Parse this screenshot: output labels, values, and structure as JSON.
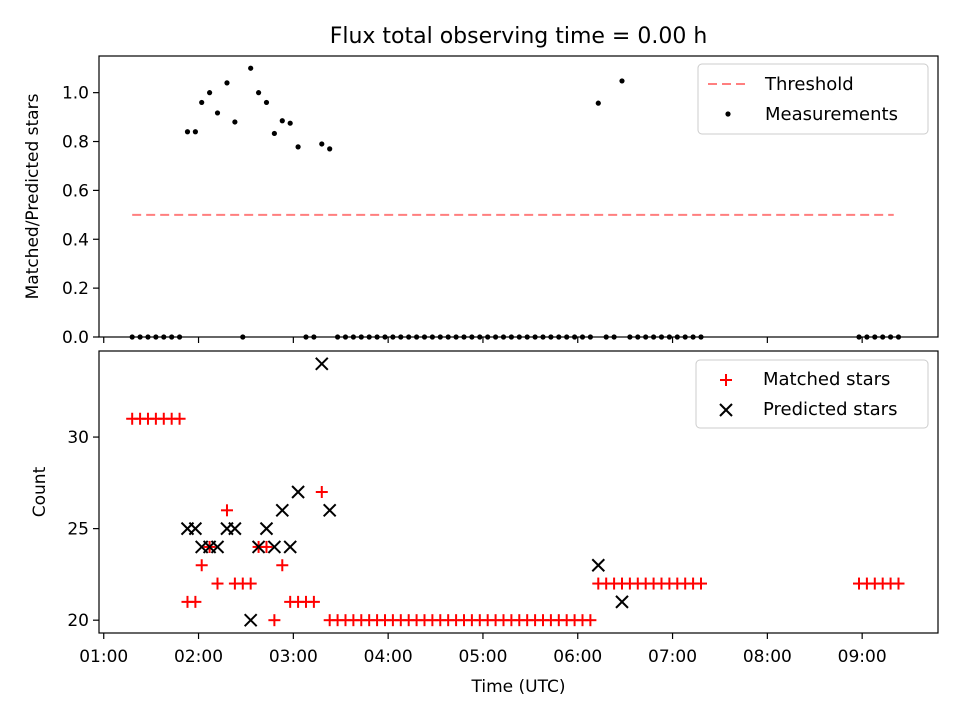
{
  "chart_data": {
    "type": "scatter",
    "title": "Flux total observing time = 0.00 h",
    "xlabel": "Time (UTC)",
    "xlim": [
      "00:57",
      "09:48"
    ],
    "x_ticks": [
      "01:00",
      "02:00",
      "03:00",
      "04:00",
      "05:00",
      "06:00",
      "07:00",
      "08:00",
      "09:00"
    ],
    "panels": [
      {
        "name": "ratio",
        "ylabel": "Matched/Predicted stars",
        "ylim": [
          0,
          1.15
        ],
        "y_ticks": [
          "0.0",
          "0.2",
          "0.4",
          "0.6",
          "0.8",
          "1.0"
        ],
        "legend_position": "upper-right",
        "series": [
          {
            "name": "Threshold",
            "kind": "line",
            "style": "dashed",
            "color": "#ff7f7f",
            "points": [
              {
                "x": "01:18",
                "y": 0.5
              },
              {
                "x": "09:20",
                "y": 0.5
              }
            ]
          },
          {
            "name": "Measurements",
            "kind": "scatter",
            "marker": "dot",
            "color": "#000000",
            "points": [
              {
                "x": "01:18",
                "y": 0
              },
              {
                "x": "01:23",
                "y": 0
              },
              {
                "x": "01:28",
                "y": 0
              },
              {
                "x": "01:33",
                "y": 0
              },
              {
                "x": "01:38",
                "y": 0
              },
              {
                "x": "01:43",
                "y": 0
              },
              {
                "x": "01:48",
                "y": 0
              },
              {
                "x": "01:53",
                "y": 0.84
              },
              {
                "x": "01:58",
                "y": 0.84
              },
              {
                "x": "02:02",
                "y": 0.96
              },
              {
                "x": "02:07",
                "y": 1.0
              },
              {
                "x": "02:12",
                "y": 0.917
              },
              {
                "x": "02:18",
                "y": 1.04
              },
              {
                "x": "02:23",
                "y": 0.88
              },
              {
                "x": "02:28",
                "y": 0
              },
              {
                "x": "02:33",
                "y": 1.1
              },
              {
                "x": "02:38",
                "y": 1.0
              },
              {
                "x": "02:43",
                "y": 0.96
              },
              {
                "x": "02:48",
                "y": 0.833
              },
              {
                "x": "02:53",
                "y": 0.885
              },
              {
                "x": "02:58",
                "y": 0.875
              },
              {
                "x": "03:03",
                "y": 0.778
              },
              {
                "x": "03:08",
                "y": 0
              },
              {
                "x": "03:13",
                "y": 0
              },
              {
                "x": "03:18",
                "y": 0.79
              },
              {
                "x": "03:23",
                "y": 0.77
              },
              {
                "x": "03:28",
                "y": 0
              },
              {
                "x": "03:33",
                "y": 0
              },
              {
                "x": "03:38",
                "y": 0
              },
              {
                "x": "03:43",
                "y": 0
              },
              {
                "x": "03:48",
                "y": 0
              },
              {
                "x": "03:53",
                "y": 0
              },
              {
                "x": "03:58",
                "y": 0
              },
              {
                "x": "04:03",
                "y": 0
              },
              {
                "x": "04:08",
                "y": 0
              },
              {
                "x": "04:13",
                "y": 0
              },
              {
                "x": "04:18",
                "y": 0
              },
              {
                "x": "04:23",
                "y": 0
              },
              {
                "x": "04:28",
                "y": 0
              },
              {
                "x": "04:33",
                "y": 0
              },
              {
                "x": "04:38",
                "y": 0
              },
              {
                "x": "04:43",
                "y": 0
              },
              {
                "x": "04:48",
                "y": 0
              },
              {
                "x": "04:53",
                "y": 0
              },
              {
                "x": "04:58",
                "y": 0
              },
              {
                "x": "05:03",
                "y": 0
              },
              {
                "x": "05:08",
                "y": 0
              },
              {
                "x": "05:13",
                "y": 0
              },
              {
                "x": "05:18",
                "y": 0
              },
              {
                "x": "05:23",
                "y": 0
              },
              {
                "x": "05:28",
                "y": 0
              },
              {
                "x": "05:33",
                "y": 0
              },
              {
                "x": "05:38",
                "y": 0
              },
              {
                "x": "05:43",
                "y": 0
              },
              {
                "x": "05:48",
                "y": 0
              },
              {
                "x": "05:53",
                "y": 0
              },
              {
                "x": "05:58",
                "y": 0
              },
              {
                "x": "06:03",
                "y": 0
              },
              {
                "x": "06:08",
                "y": 0
              },
              {
                "x": "06:13",
                "y": 0.957
              },
              {
                "x": "06:18",
                "y": 0
              },
              {
                "x": "06:23",
                "y": 0
              },
              {
                "x": "06:28",
                "y": 1.048
              },
              {
                "x": "06:33",
                "y": 0
              },
              {
                "x": "06:38",
                "y": 0
              },
              {
                "x": "06:43",
                "y": 0
              },
              {
                "x": "06:48",
                "y": 0
              },
              {
                "x": "06:53",
                "y": 0
              },
              {
                "x": "06:58",
                "y": 0
              },
              {
                "x": "07:03",
                "y": 0
              },
              {
                "x": "07:08",
                "y": 0
              },
              {
                "x": "07:13",
                "y": 0
              },
              {
                "x": "07:18",
                "y": 0
              },
              {
                "x": "08:58",
                "y": 0
              },
              {
                "x": "09:03",
                "y": 0
              },
              {
                "x": "09:08",
                "y": 0
              },
              {
                "x": "09:13",
                "y": 0
              },
              {
                "x": "09:18",
                "y": 0
              },
              {
                "x": "09:23",
                "y": 0
              }
            ]
          }
        ]
      },
      {
        "name": "count",
        "ylabel": "Count",
        "ylim": [
          19.3,
          34.7
        ],
        "y_ticks": [
          "20",
          "25",
          "30"
        ],
        "legend_position": "upper-right",
        "series": [
          {
            "name": "Matched stars",
            "kind": "scatter",
            "marker": "plus",
            "color": "#ff0000",
            "points": [
              {
                "x": "01:18",
                "y": 31
              },
              {
                "x": "01:23",
                "y": 31
              },
              {
                "x": "01:28",
                "y": 31
              },
              {
                "x": "01:33",
                "y": 31
              },
              {
                "x": "01:38",
                "y": 31
              },
              {
                "x": "01:43",
                "y": 31
              },
              {
                "x": "01:48",
                "y": 31
              },
              {
                "x": "01:53",
                "y": 21
              },
              {
                "x": "01:58",
                "y": 21
              },
              {
                "x": "02:02",
                "y": 23
              },
              {
                "x": "02:07",
                "y": 24
              },
              {
                "x": "02:12",
                "y": 22
              },
              {
                "x": "02:18",
                "y": 26
              },
              {
                "x": "02:23",
                "y": 22
              },
              {
                "x": "02:28",
                "y": 22
              },
              {
                "x": "02:33",
                "y": 22
              },
              {
                "x": "02:38",
                "y": 24
              },
              {
                "x": "02:43",
                "y": 24
              },
              {
                "x": "02:48",
                "y": 20
              },
              {
                "x": "02:53",
                "y": 23
              },
              {
                "x": "02:58",
                "y": 21
              },
              {
                "x": "03:03",
                "y": 21
              },
              {
                "x": "03:08",
                "y": 21
              },
              {
                "x": "03:13",
                "y": 21
              },
              {
                "x": "03:18",
                "y": 27
              },
              {
                "x": "03:23",
                "y": 20
              },
              {
                "x": "03:28",
                "y": 20
              },
              {
                "x": "03:33",
                "y": 20
              },
              {
                "x": "03:38",
                "y": 20
              },
              {
                "x": "03:43",
                "y": 20
              },
              {
                "x": "03:48",
                "y": 20
              },
              {
                "x": "03:53",
                "y": 20
              },
              {
                "x": "03:58",
                "y": 20
              },
              {
                "x": "04:03",
                "y": 20
              },
              {
                "x": "04:08",
                "y": 20
              },
              {
                "x": "04:13",
                "y": 20
              },
              {
                "x": "04:18",
                "y": 20
              },
              {
                "x": "04:23",
                "y": 20
              },
              {
                "x": "04:28",
                "y": 20
              },
              {
                "x": "04:33",
                "y": 20
              },
              {
                "x": "04:38",
                "y": 20
              },
              {
                "x": "04:43",
                "y": 20
              },
              {
                "x": "04:48",
                "y": 20
              },
              {
                "x": "04:53",
                "y": 20
              },
              {
                "x": "04:58",
                "y": 20
              },
              {
                "x": "05:03",
                "y": 20
              },
              {
                "x": "05:08",
                "y": 20
              },
              {
                "x": "05:13",
                "y": 20
              },
              {
                "x": "05:18",
                "y": 20
              },
              {
                "x": "05:23",
                "y": 20
              },
              {
                "x": "05:28",
                "y": 20
              },
              {
                "x": "05:33",
                "y": 20
              },
              {
                "x": "05:38",
                "y": 20
              },
              {
                "x": "05:43",
                "y": 20
              },
              {
                "x": "05:48",
                "y": 20
              },
              {
                "x": "05:53",
                "y": 20
              },
              {
                "x": "05:58",
                "y": 20
              },
              {
                "x": "06:03",
                "y": 20
              },
              {
                "x": "06:08",
                "y": 20
              },
              {
                "x": "06:13",
                "y": 22
              },
              {
                "x": "06:18",
                "y": 22
              },
              {
                "x": "06:23",
                "y": 22
              },
              {
                "x": "06:28",
                "y": 22
              },
              {
                "x": "06:33",
                "y": 22
              },
              {
                "x": "06:38",
                "y": 22
              },
              {
                "x": "06:43",
                "y": 22
              },
              {
                "x": "06:48",
                "y": 22
              },
              {
                "x": "06:53",
                "y": 22
              },
              {
                "x": "06:58",
                "y": 22
              },
              {
                "x": "07:03",
                "y": 22
              },
              {
                "x": "07:08",
                "y": 22
              },
              {
                "x": "07:13",
                "y": 22
              },
              {
                "x": "07:18",
                "y": 22
              },
              {
                "x": "08:58",
                "y": 22
              },
              {
                "x": "09:03",
                "y": 22
              },
              {
                "x": "09:08",
                "y": 22
              },
              {
                "x": "09:13",
                "y": 22
              },
              {
                "x": "09:18",
                "y": 22
              },
              {
                "x": "09:23",
                "y": 22
              }
            ]
          },
          {
            "name": "Predicted stars",
            "kind": "scatter",
            "marker": "x",
            "color": "#000000",
            "points": [
              {
                "x": "01:53",
                "y": 25
              },
              {
                "x": "01:58",
                "y": 25
              },
              {
                "x": "02:02",
                "y": 24
              },
              {
                "x": "02:07",
                "y": 24
              },
              {
                "x": "02:12",
                "y": 24
              },
              {
                "x": "02:18",
                "y": 25
              },
              {
                "x": "02:23",
                "y": 25
              },
              {
                "x": "02:33",
                "y": 20
              },
              {
                "x": "02:38",
                "y": 24
              },
              {
                "x": "02:43",
                "y": 25
              },
              {
                "x": "02:48",
                "y": 24
              },
              {
                "x": "02:53",
                "y": 26
              },
              {
                "x": "02:58",
                "y": 24
              },
              {
                "x": "03:03",
                "y": 27
              },
              {
                "x": "03:18",
                "y": 34
              },
              {
                "x": "03:23",
                "y": 26
              },
              {
                "x": "06:13",
                "y": 23
              },
              {
                "x": "06:28",
                "y": 21
              }
            ]
          }
        ]
      }
    ]
  }
}
